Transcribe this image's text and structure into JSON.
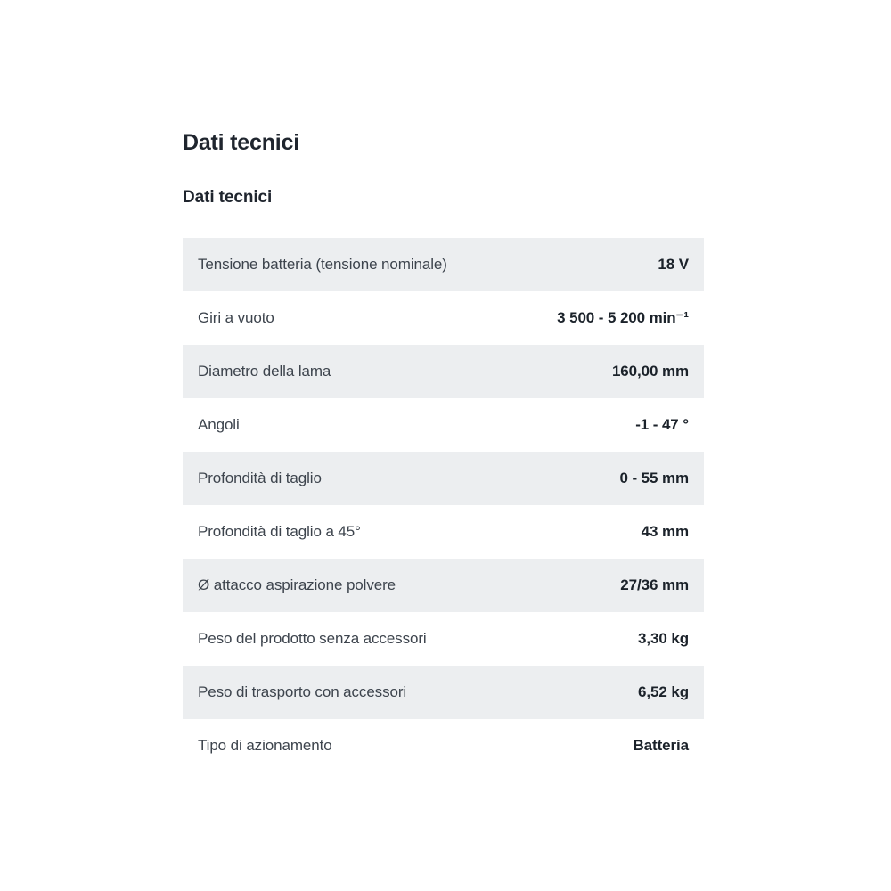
{
  "page": {
    "title": "Dati tecnici",
    "section_title": "Dati tecnici"
  },
  "colors": {
    "background": "#ffffff",
    "row_alt_background": "#eceef0",
    "label_text": "#3d444d",
    "value_text": "#1b222a",
    "heading_text": "#1f252e"
  },
  "table": {
    "rows": [
      {
        "label": "Tensione batteria (tensione nominale)",
        "value": "18 V"
      },
      {
        "label": "Giri a vuoto",
        "value": "3 500 - 5 200 min⁻¹"
      },
      {
        "label": "Diametro della lama",
        "value": "160,00 mm"
      },
      {
        "label": "Angoli",
        "value": "-1 - 47 °"
      },
      {
        "label": "Profondità di taglio",
        "value": "0 - 55 mm"
      },
      {
        "label": "Profondità di taglio a 45°",
        "value": "43 mm"
      },
      {
        "label": "Ø attacco aspirazione polvere",
        "value": "27/36 mm"
      },
      {
        "label": "Peso del prodotto senza accessori",
        "value": "3,30 kg"
      },
      {
        "label": "Peso di trasporto con accessori",
        "value": "6,52 kg"
      },
      {
        "label": "Tipo di azionamento",
        "value": "Batteria"
      }
    ]
  }
}
